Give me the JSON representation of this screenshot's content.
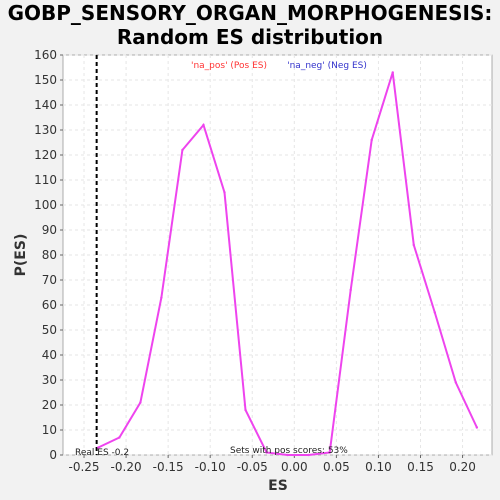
{
  "chart_data": {
    "type": "line",
    "title_line1": "GOBP_SENSORY_ORGAN_MORPHOGENESIS:",
    "title_line2": "Random ES distribution",
    "xlabel": "ES",
    "ylabel": "P(ES)",
    "xlim": [
      -0.275,
      0.235
    ],
    "ylim": [
      0,
      160
    ],
    "x_ticks": [
      "-0.25",
      "-0.20",
      "-0.15",
      "-0.10",
      "-0.05",
      "0.00",
      "0.05",
      "0.10",
      "0.15",
      "0.20"
    ],
    "x_tick_values": [
      -0.25,
      -0.2,
      -0.15,
      -0.1,
      -0.05,
      0,
      0.05,
      0.1,
      0.15,
      0.2
    ],
    "y_ticks": [
      "0",
      "10",
      "20",
      "30",
      "40",
      "50",
      "60",
      "70",
      "80",
      "90",
      "100",
      "110",
      "120",
      "130",
      "140",
      "150",
      "160"
    ],
    "y_tick_values": [
      0,
      10,
      20,
      30,
      40,
      50,
      60,
      70,
      80,
      90,
      100,
      110,
      120,
      130,
      140,
      150,
      160
    ],
    "grid": true,
    "series": [
      {
        "name": "'na_pos' (Pos ES)",
        "color": "#ff3333",
        "x": [],
        "y": []
      },
      {
        "name": "'na_neg' (Neg ES)",
        "color": "#3333cc",
        "x": [],
        "y": []
      }
    ],
    "curve": {
      "color": "#ee44ee",
      "x": [
        -0.233,
        -0.208,
        -0.183,
        -0.158,
        -0.133,
        -0.108,
        -0.083,
        -0.058,
        -0.033,
        -0.008,
        0.017,
        0.042,
        0.067,
        0.092,
        0.117,
        0.142,
        0.167,
        0.192,
        0.217
      ],
      "y": [
        3,
        7,
        21,
        63,
        122,
        132,
        105,
        18,
        1,
        0,
        0,
        1,
        66,
        126,
        153,
        84,
        57,
        29,
        11
      ]
    },
    "real_es": -0.235,
    "real_es_label": "Real ES -0.2",
    "pos_scores_label": "Sets with pos scores: 53%",
    "legend_position": "top"
  }
}
